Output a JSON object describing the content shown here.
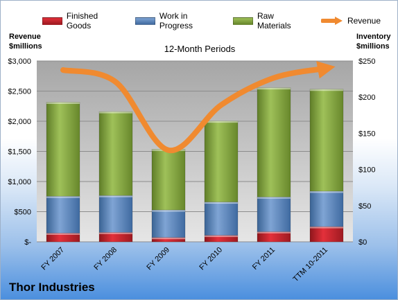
{
  "chart_data": {
    "type": "bar",
    "stacked": true,
    "title": "Thor Industries",
    "subtitle": "12-Month Periods",
    "categories": [
      "FY 2007",
      "FY 2008",
      "FY 2009",
      "FY 2010",
      "FY 2011",
      "TTM 10-2011"
    ],
    "series": [
      {
        "name": "Finished Goods",
        "axis": "right",
        "color": "#c0222b",
        "values": [
          12,
          13,
          6,
          9,
          14,
          21
        ]
      },
      {
        "name": "Work in Progress",
        "axis": "right",
        "color": "#4f81bd",
        "values": [
          51,
          51,
          38,
          46,
          48,
          49
        ]
      },
      {
        "name": "Raw Materials",
        "axis": "right",
        "color": "#82a63a",
        "values": [
          130,
          116,
          84,
          112,
          151,
          141
        ]
      },
      {
        "name": "Revenue",
        "type": "line",
        "axis": "left",
        "color": "#f08a30",
        "values": [
          2850,
          2650,
          1520,
          2270,
          2720,
          2880
        ]
      }
    ],
    "y_left": {
      "label": "Revenue\n$millions",
      "range": [
        0,
        3000
      ],
      "ticks": [
        "$-",
        "$500",
        "$1,000",
        "$1,500",
        "$2,000",
        "$2,500",
        "$3,000"
      ]
    },
    "y_right": {
      "label": "Inventory\n$millions",
      "range": [
        0,
        250
      ],
      "ticks": [
        "$0",
        "$50",
        "$100",
        "$150",
        "$200",
        "$250"
      ]
    },
    "grid": true,
    "legend": "top"
  }
}
